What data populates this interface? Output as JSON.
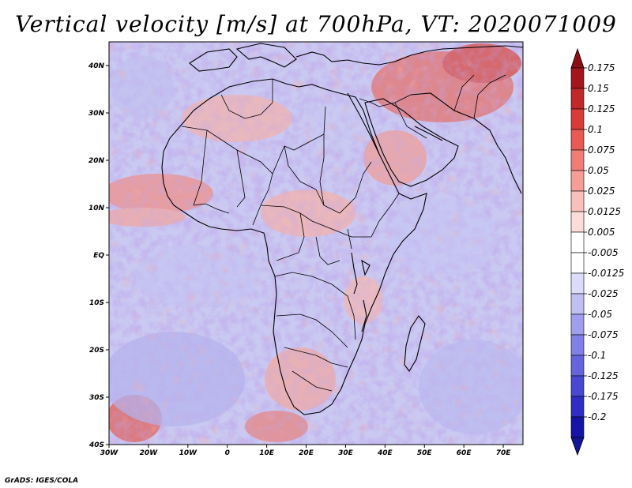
{
  "title": "Vertical velocity [m/s] at 700hPa, VT: 2020071009",
  "credit": "GrADS: IGES/COLA",
  "map": {
    "lon_range": [
      -30,
      75
    ],
    "lat_range": [
      -40,
      45
    ],
    "lat_ticks": [
      "40N",
      "30N",
      "20N",
      "10N",
      "EQ",
      "10S",
      "20S",
      "30S",
      "40S"
    ],
    "lon_ticks": [
      "30W",
      "20W",
      "10W",
      "0",
      "10E",
      "20E",
      "30E",
      "40E",
      "50E",
      "60E",
      "70E"
    ]
  },
  "colorbar": {
    "entries": [
      {
        "label": "0.175",
        "color": "#a3161c"
      },
      {
        "label": "0.15",
        "color": "#c0282a"
      },
      {
        "label": "0.125",
        "color": "#d83b38"
      },
      {
        "label": "0.1",
        "color": "#e85a54"
      },
      {
        "label": "0.075",
        "color": "#f07d76"
      },
      {
        "label": "0.05",
        "color": "#f59e97"
      },
      {
        "label": "0.025",
        "color": "#f9bfba"
      },
      {
        "label": "0.0125",
        "color": "#fcdcd8"
      },
      {
        "label": "0.005",
        "color": "#ffffff"
      },
      {
        "label": "-0.005",
        "color": "#ffffff"
      },
      {
        "label": "-0.0125",
        "color": "#dcdcfa"
      },
      {
        "label": "-0.025",
        "color": "#bfbff3"
      },
      {
        "label": "-0.05",
        "color": "#9f9fee"
      },
      {
        "label": "-0.075",
        "color": "#8080e6"
      },
      {
        "label": "-0.1",
        "color": "#6464dc"
      },
      {
        "label": "-0.125",
        "color": "#4848d2"
      },
      {
        "label": "-0.175",
        "color": "#2e2ec4"
      },
      {
        "label": "-0.2",
        "color": "#1414a8"
      }
    ],
    "top_arrow_color": "#8c1015",
    "bottom_arrow_color": "#14149a"
  }
}
